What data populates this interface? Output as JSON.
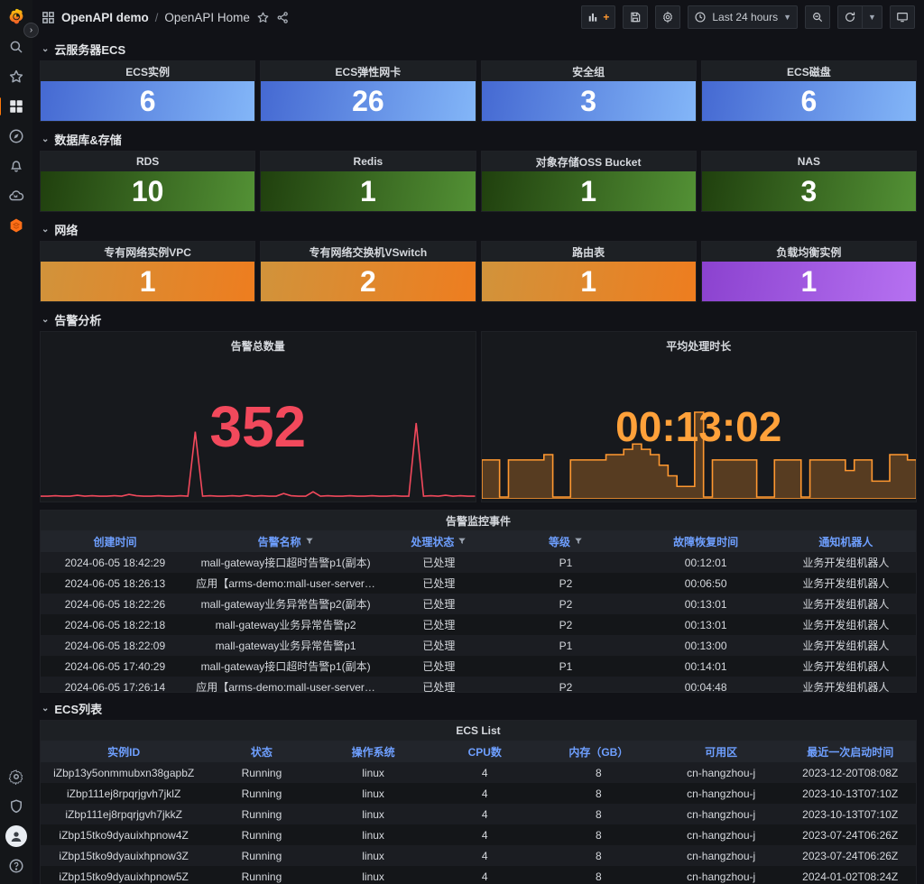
{
  "header": {
    "breadcrumb": {
      "app": "OpenAPI demo",
      "separator": "/",
      "page": "OpenAPI Home"
    },
    "toolbar": {
      "time_range_label": "Last 24 hours",
      "buttons": [
        "add-panel",
        "save-dashboard",
        "dashboard-settings",
        "time-range-picker",
        "zoom-out-time",
        "refresh",
        "refresh-interval",
        "kiosk-mode"
      ]
    }
  },
  "sidebar": {
    "top_items": [
      "grafana-logo",
      "search",
      "starred",
      "dashboards",
      "explore",
      "alerting",
      "machine-learning",
      "cloud-plugin"
    ],
    "bottom_items": [
      "configuration",
      "server-admin",
      "user-profile",
      "help"
    ]
  },
  "colors": {
    "accent_orange": "#ff780a",
    "stat_blue": "#4f7ede",
    "stat_green": "#3a7020",
    "stat_orange": "#e8872c",
    "stat_purple": "#9f56e0",
    "alert_red": "#f2495c",
    "duration_orange": "#ff9830",
    "link_blue": "#6e9fff"
  },
  "sections": {
    "ecs": {
      "title": "云服务器ECS",
      "stats": [
        {
          "label": "ECS实例",
          "value": "6",
          "scheme": "blue"
        },
        {
          "label": "ECS弹性网卡",
          "value": "26",
          "scheme": "blue"
        },
        {
          "label": "安全组",
          "value": "3",
          "scheme": "blue"
        },
        {
          "label": "ECS磁盘",
          "value": "6",
          "scheme": "blue"
        }
      ]
    },
    "db": {
      "title": "数据库&存储",
      "stats": [
        {
          "label": "RDS",
          "value": "10",
          "scheme": "green"
        },
        {
          "label": "Redis",
          "value": "1",
          "scheme": "green"
        },
        {
          "label": "对象存储OSS Bucket",
          "value": "1",
          "scheme": "green"
        },
        {
          "label": "NAS",
          "value": "3",
          "scheme": "green"
        }
      ]
    },
    "network": {
      "title": "网络",
      "stats": [
        {
          "label": "专有网络实例VPC",
          "value": "1",
          "scheme": "orange"
        },
        {
          "label": "专有网络交换机VSwitch",
          "value": "2",
          "scheme": "orange"
        },
        {
          "label": "路由表",
          "value": "1",
          "scheme": "orange"
        },
        {
          "label": "负载均衡实例",
          "value": "1",
          "scheme": "purple"
        }
      ]
    },
    "alerts": {
      "title": "告警分析",
      "total_panel": {
        "title": "告警总数量",
        "value": "352"
      },
      "duration_panel": {
        "title": "平均处理时长",
        "value": "00:13:02"
      },
      "table": {
        "title": "告警监控事件",
        "columns": [
          "创建时间",
          "告警名称",
          "处理状态",
          "等级",
          "故障恢复时间",
          "通知机器人"
        ],
        "filter_columns": [
          1,
          2,
          3
        ],
        "rows": [
          [
            "2024-06-05 18:42:29",
            "mall-gateway接口超时告警p1(副本)",
            "已处理",
            "P1",
            "00:12:01",
            "业务开发组机器人"
          ],
          [
            "2024-06-05 18:26:13",
            "应用【arms-demo:mall-user-server…",
            "已处理",
            "P2",
            "00:06:50",
            "业务开发组机器人"
          ],
          [
            "2024-06-05 18:22:26",
            "mall-gateway业务异常告警p2(副本)",
            "已处理",
            "P2",
            "00:13:01",
            "业务开发组机器人"
          ],
          [
            "2024-06-05 18:22:18",
            "mall-gateway业务异常告警p2",
            "已处理",
            "P2",
            "00:13:01",
            "业务开发组机器人"
          ],
          [
            "2024-06-05 18:22:09",
            "mall-gateway业务异常告警p1",
            "已处理",
            "P1",
            "00:13:00",
            "业务开发组机器人"
          ],
          [
            "2024-06-05 17:40:29",
            "mall-gateway接口超时告警p1(副本)",
            "已处理",
            "P1",
            "00:14:01",
            "业务开发组机器人"
          ],
          [
            "2024-06-05 17:26:14",
            "应用【arms-demo:mall-user-server…",
            "已处理",
            "P2",
            "00:04:48",
            "业务开发组机器人"
          ]
        ]
      }
    },
    "ecs_list": {
      "title": "ECS列表",
      "table": {
        "title": "ECS List",
        "columns": [
          "实例ID",
          "状态",
          "操作系统",
          "CPU数",
          "内存（GB）",
          "可用区",
          "最近一次启动时间"
        ],
        "rows": [
          [
            "iZbp13y5onmmubxn38gapbZ",
            "Running",
            "linux",
            "4",
            "8",
            "cn-hangzhou-j",
            "2023-12-20T08:08Z"
          ],
          [
            "iZbp111ej8rpqrjgvh7jklZ",
            "Running",
            "linux",
            "4",
            "8",
            "cn-hangzhou-j",
            "2023-10-13T07:10Z"
          ],
          [
            "iZbp111ej8rpqrjgvh7jkkZ",
            "Running",
            "linux",
            "4",
            "8",
            "cn-hangzhou-j",
            "2023-10-13T07:10Z"
          ],
          [
            "iZbp15tko9dyauixhpnow4Z",
            "Running",
            "linux",
            "4",
            "8",
            "cn-hangzhou-j",
            "2023-07-24T06:26Z"
          ],
          [
            "iZbp15tko9dyauixhpnow3Z",
            "Running",
            "linux",
            "4",
            "8",
            "cn-hangzhou-j",
            "2023-07-24T06:26Z"
          ],
          [
            "iZbp15tko9dyauixhpnow5Z",
            "Running",
            "linux",
            "4",
            "8",
            "cn-hangzhou-j",
            "2024-01-02T08:24Z"
          ]
        ]
      }
    }
  },
  "chart_data": [
    {
      "type": "line",
      "title": "告警总数量",
      "legend_position": "none",
      "grid": false,
      "x_range": "last 24 hours",
      "color": "#F2495C",
      "values": [
        2,
        2,
        3,
        2,
        2,
        4,
        2,
        3,
        2,
        2,
        3,
        2,
        6,
        3,
        2,
        2,
        3,
        2,
        2,
        3,
        2,
        150,
        2,
        3,
        2,
        2,
        3,
        2,
        4,
        2,
        3,
        2,
        2,
        8,
        3,
        2,
        2,
        12,
        2,
        3,
        2,
        2,
        3,
        2,
        2,
        3,
        2,
        2,
        3,
        2,
        2,
        170,
        2,
        3,
        2,
        4,
        2,
        3,
        2,
        2
      ],
      "summary_value": 352
    },
    {
      "type": "area",
      "title": "平均处理时长",
      "legend_position": "none",
      "grid": false,
      "x_range": "last 24 hours",
      "color": "#FF9830",
      "values": [
        7,
        7,
        0,
        7,
        7,
        7,
        7,
        8,
        0,
        0,
        7,
        7,
        7,
        7,
        8,
        8,
        9,
        10,
        9,
        8,
        6,
        4,
        2,
        2,
        16,
        0,
        7,
        7,
        7,
        7,
        7,
        0,
        0,
        7,
        7,
        7,
        0,
        7,
        7,
        7,
        7,
        5,
        7,
        7,
        3,
        3,
        8,
        8,
        7,
        7
      ],
      "summary_value": "00:13:02"
    }
  ]
}
